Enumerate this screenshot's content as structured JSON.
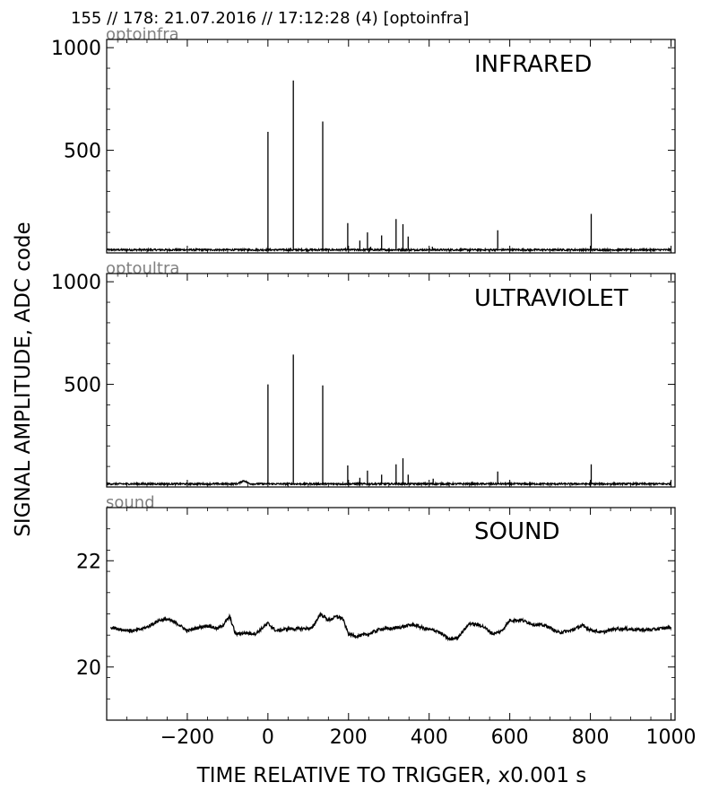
{
  "header": "155 // 178:   21.07.2016 // 17:12:28 (4)  [optoinfra]",
  "ylabel": "SIGNAL AMPLITUDE,  ADC code",
  "xlabel": "TIME RELATIVE TO TRIGGER,   x0.001 s",
  "colors": {
    "trace": "#000000",
    "channel_label": "#808080",
    "frame": "#000000"
  },
  "chart_data": [
    {
      "type": "line",
      "channel": "optoinfra",
      "title": "INFRARED",
      "xlim": [
        -400,
        1010
      ],
      "ylim": [
        0,
        1040
      ],
      "yticks": [
        500,
        1000
      ],
      "ytick_labels": [
        "500",
        "1000"
      ],
      "xtick_labels": [],
      "grid": false,
      "baseline": 15,
      "noise": 4,
      "peaks": [
        {
          "x": 0,
          "y": 590
        },
        {
          "x": 63,
          "y": 840
        },
        {
          "x": 136,
          "y": 640
        },
        {
          "x": 198,
          "y": 145
        },
        {
          "x": 228,
          "y": 60
        },
        {
          "x": 247,
          "y": 100
        },
        {
          "x": 255,
          "y": 30
        },
        {
          "x": 282,
          "y": 85
        },
        {
          "x": 318,
          "y": 165
        },
        {
          "x": 335,
          "y": 140
        },
        {
          "x": 348,
          "y": 80
        },
        {
          "x": 408,
          "y": 30
        },
        {
          "x": 570,
          "y": 110
        },
        {
          "x": 802,
          "y": 190
        }
      ]
    },
    {
      "type": "line",
      "channel": "optoultra",
      "title": "ULTRAVIOLET",
      "xlim": [
        -400,
        1010
      ],
      "ylim": [
        0,
        1040
      ],
      "yticks": [
        500,
        1000
      ],
      "ytick_labels": [
        "500",
        "1000"
      ],
      "xtick_labels": [],
      "grid": false,
      "baseline": 15,
      "noise": 4,
      "peaks": [
        {
          "x": 0,
          "y": 500
        },
        {
          "x": 63,
          "y": 645
        },
        {
          "x": 136,
          "y": 495
        },
        {
          "x": 198,
          "y": 105
        },
        {
          "x": 228,
          "y": 45
        },
        {
          "x": 247,
          "y": 80
        },
        {
          "x": 282,
          "y": 60
        },
        {
          "x": 318,
          "y": 110
        },
        {
          "x": 335,
          "y": 140
        },
        {
          "x": 348,
          "y": 60
        },
        {
          "x": 410,
          "y": 40
        },
        {
          "x": 570,
          "y": 75
        },
        {
          "x": 802,
          "y": 110
        }
      ],
      "bumps": [
        {
          "x": -60,
          "y": 30
        }
      ]
    },
    {
      "type": "line",
      "channel": "sound",
      "title": "SOUND",
      "xlim": [
        -400,
        1010
      ],
      "ylim": [
        19,
        23
      ],
      "yticks": [
        20,
        22
      ],
      "ytick_labels": [
        "20",
        "22"
      ],
      "xticks": [
        -200,
        0,
        200,
        400,
        600,
        800,
        1000
      ],
      "xtick_labels": [
        "−200",
        "0",
        "200",
        "400",
        "600",
        "800",
        "1000"
      ],
      "grid": false,
      "noise": 0.03,
      "x": [
        -390,
        -360,
        -330,
        -300,
        -270,
        -250,
        -225,
        -200,
        -175,
        -150,
        -125,
        -110,
        -95,
        -80,
        -60,
        -30,
        0,
        20,
        50,
        80,
        110,
        130,
        150,
        170,
        185,
        200,
        220,
        250,
        280,
        300,
        330,
        360,
        390,
        420,
        450,
        470,
        500,
        530,
        560,
        580,
        600,
        630,
        660,
        690,
        720,
        750,
        780,
        800,
        830,
        860,
        890,
        920,
        950,
        1000
      ],
      "y": [
        20.75,
        20.7,
        20.68,
        20.75,
        20.88,
        20.9,
        20.82,
        20.68,
        20.74,
        20.78,
        20.72,
        20.8,
        20.95,
        20.62,
        20.64,
        20.63,
        20.82,
        20.68,
        20.72,
        20.72,
        20.73,
        21.0,
        20.88,
        20.95,
        20.92,
        20.62,
        20.58,
        20.62,
        20.72,
        20.72,
        20.75,
        20.8,
        20.72,
        20.68,
        20.52,
        20.55,
        20.82,
        20.78,
        20.62,
        20.68,
        20.88,
        20.88,
        20.8,
        20.78,
        20.65,
        20.68,
        20.78,
        20.7,
        20.65,
        20.72,
        20.72,
        20.7,
        20.7,
        20.75
      ]
    }
  ]
}
